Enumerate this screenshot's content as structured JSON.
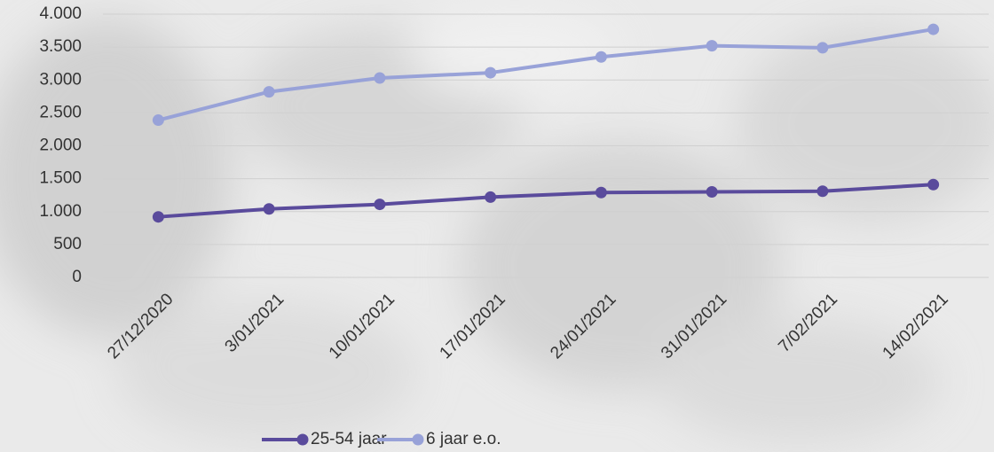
{
  "chart_data": {
    "type": "line",
    "categories": [
      "27/12/2020",
      "3/01/2021",
      "10/01/2021",
      "17/01/2021",
      "24/01/2021",
      "31/01/2021",
      "7/02/2021",
      "14/02/2021"
    ],
    "series": [
      {
        "name": "25-54 jaar",
        "color": "#5a4b9c",
        "values": [
          920,
          1040,
          1110,
          1220,
          1290,
          1300,
          1310,
          1410
        ]
      },
      {
        "name": "6 jaar e.o.",
        "color": "#98a2d8",
        "values": [
          2390,
          2820,
          3030,
          3110,
          3350,
          3520,
          3490,
          3770
        ]
      }
    ],
    "ylim": [
      0,
      4000
    ],
    "yticks": [
      0,
      500,
      {
        "value": 1000,
        "label": "1.000"
      },
      {
        "value": 1500,
        "label": "1.500"
      },
      {
        "value": 2000,
        "label": "2.000"
      },
      {
        "value": 2500,
        "label": "2.500"
      },
      {
        "value": 3000,
        "label": "3.000"
      },
      {
        "value": 3500,
        "label": "3.500"
      },
      {
        "value": 4000,
        "label": "4.000"
      }
    ],
    "grid": true,
    "legend": "bottom"
  }
}
